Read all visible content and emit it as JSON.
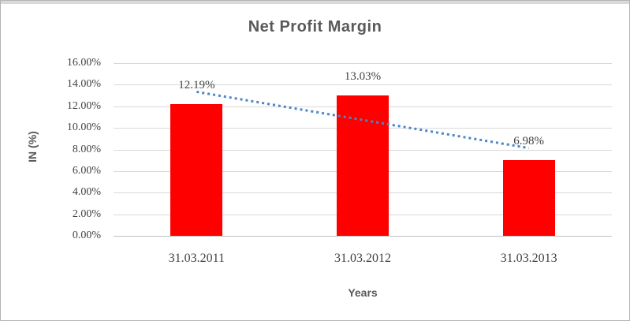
{
  "chart_data": {
    "type": "bar",
    "title": "Net Profit Margin",
    "xlabel": "Years",
    "ylabel": "IN (%)",
    "categories": [
      "31.03.2011",
      "31.03.2012",
      "31.03.2013"
    ],
    "values": [
      12.19,
      13.03,
      6.98
    ],
    "data_labels": [
      "12.19%",
      "13.03%",
      "6.98%"
    ],
    "yticks": [
      {
        "value": 16,
        "label": "16.00%"
      },
      {
        "value": 14,
        "label": "14.00%"
      },
      {
        "value": 12,
        "label": "12.00%"
      },
      {
        "value": 10,
        "label": "10.00%"
      },
      {
        "value": 8,
        "label": "8.00%"
      },
      {
        "value": 6,
        "label": "6.00%"
      },
      {
        "value": 4,
        "label": "4.00%"
      },
      {
        "value": 2,
        "label": "2.00%"
      },
      {
        "value": 0,
        "label": "0.00%"
      }
    ],
    "ylim": [
      0,
      16
    ],
    "grid": true,
    "legend": "none",
    "trendline": {
      "type": "linear",
      "style": "dotted"
    }
  },
  "colors": {
    "title_text": "#595959",
    "axis_text": "#404040",
    "gridline": "#D9D9D9",
    "axis_line": "#BFBFBF",
    "bar_color": "#FF0000",
    "trend_color": "#4A86C8",
    "frame_border": "#B4B4B4",
    "top_strip": "#D9D9D9"
  }
}
